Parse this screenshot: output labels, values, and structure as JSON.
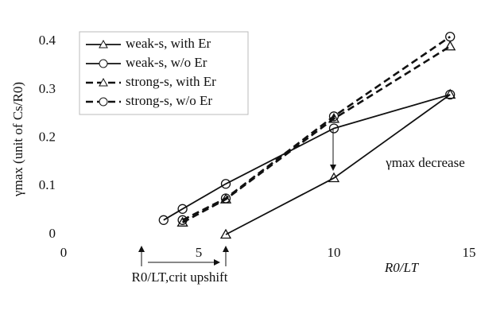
{
  "chart_data": {
    "type": "line",
    "x_label": "R0/LT",
    "y_label": "γmax (unit of Cs/R0)",
    "annotations": [
      "γmax decrease",
      "R0/LT,crit upshift"
    ],
    "xlim": [
      0,
      15
    ],
    "xticks": [
      0,
      5,
      10,
      15
    ],
    "ylim": [
      0,
      0.43
    ],
    "yticks": [
      0,
      0.1,
      0.2,
      0.3,
      0.4
    ],
    "series": [
      {
        "name": "weak-s, with Er",
        "color": "#111111",
        "dash": false,
        "marker": "triangle",
        "x": [
          6,
          10,
          14.3
        ],
        "values": [
          0,
          0.117,
          0.29
        ]
      },
      {
        "name": "weak-s, w/o Er",
        "color": "#111111",
        "dash": false,
        "marker": "circle",
        "x": [
          3.7,
          4.4,
          6,
          10,
          14.3
        ],
        "values": [
          0.03,
          0.053,
          0.105,
          0.22,
          0.29
        ]
      },
      {
        "name": "strong-s, with Er",
        "color": "#111111",
        "dash": true,
        "marker": "triangle",
        "x": [
          4.4,
          6,
          10,
          14.3
        ],
        "values": [
          0.025,
          0.073,
          0.24,
          0.39
        ]
      },
      {
        "name": "strong-s, w/o Er",
        "color": "#111111",
        "dash": true,
        "marker": "circle",
        "x": [
          4.4,
          6,
          10,
          14.3
        ],
        "values": [
          0.03,
          0.075,
          0.245,
          0.41
        ]
      }
    ]
  }
}
